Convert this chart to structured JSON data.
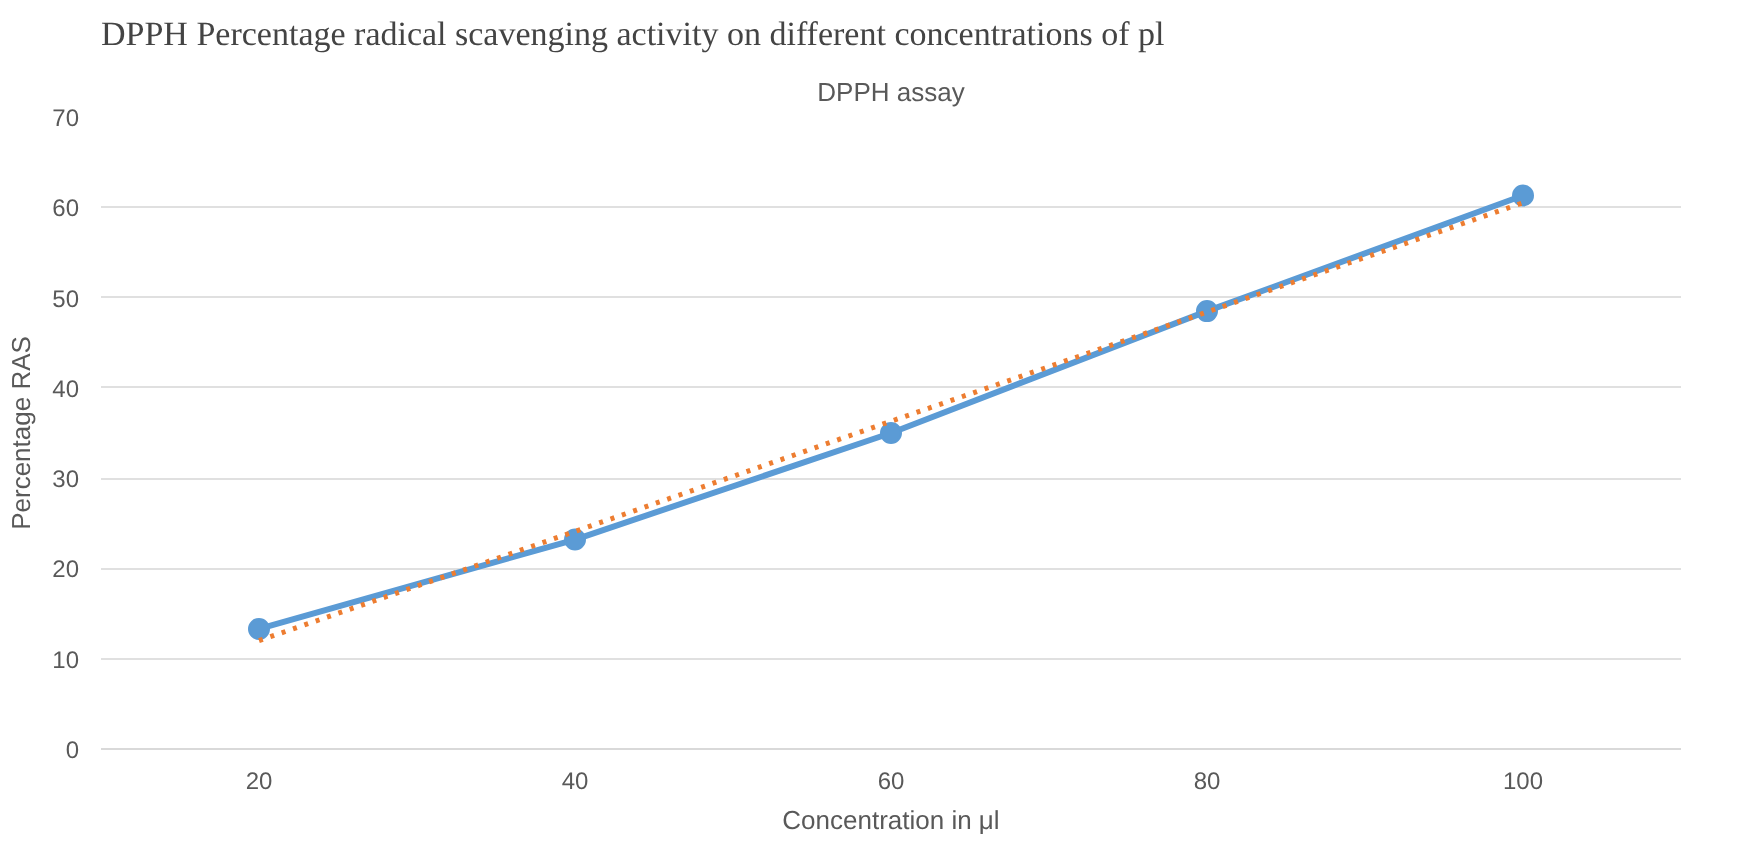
{
  "chart_data": {
    "type": "line",
    "title": "DPPH assay",
    "xlabel": "Concentration in μl",
    "ylabel": "Percentage RAS",
    "annotations": [
      "DPPH Percentage radical scavenging activity on different concentrations of pl"
    ],
    "categories": [
      "20",
      "40",
      "60",
      "80",
      "100"
    ],
    "series": [
      {
        "type": "line",
        "color": "#5b9bd5",
        "values": [
          13.3,
          23.2,
          35,
          48.5,
          61.3
        ],
        "marker": "circle",
        "line_style": "solid"
      },
      {
        "type": "line",
        "color": "#ed7d31",
        "values": [
          12.0,
          24.1,
          36.3,
          48.4,
          60.5
        ],
        "marker": "none",
        "line_style": "dotted"
      }
    ],
    "ylim": [
      0,
      70
    ],
    "yticks": [
      0,
      10,
      20,
      30,
      40,
      50,
      60,
      70
    ],
    "grid": "y"
  }
}
